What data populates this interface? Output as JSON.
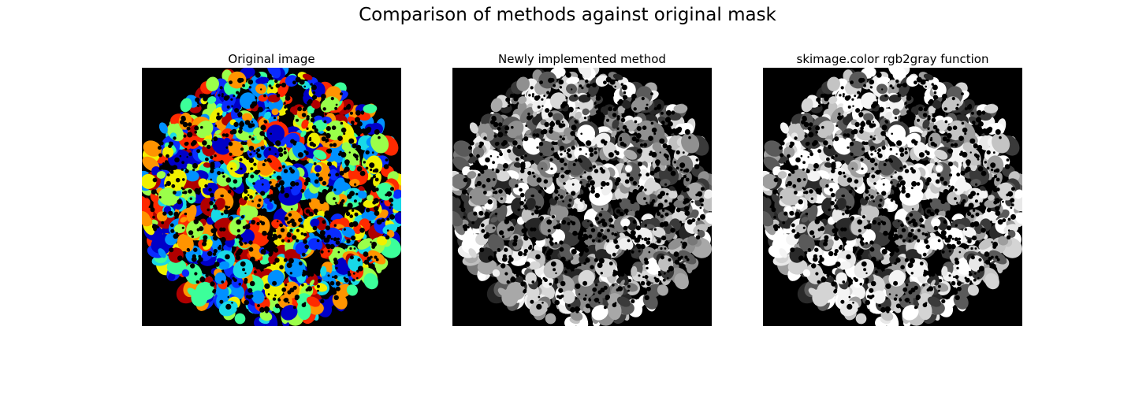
{
  "figure": {
    "suptitle": "Comparison of methods against original mask",
    "panels": [
      {
        "title": "Original image",
        "palette": "jet"
      },
      {
        "title": "Newly implemented method",
        "palette": "gray"
      },
      {
        "title": "skimage.color rgb2gray function",
        "palette": "gray-bright"
      }
    ]
  },
  "colors": {
    "background": "#000000",
    "jet": [
      "#0000c8",
      "#0a2cff",
      "#0090ff",
      "#18d8e8",
      "#3cff9a",
      "#9aff4a",
      "#f0f000",
      "#ff9400",
      "#ff2a00",
      "#b00000"
    ],
    "gray": [
      "#ffffff",
      "#f0f0f0",
      "#d8d8d8",
      "#c0c0c0",
      "#a8a8a8",
      "#909090",
      "#787878",
      "#5a5a5a",
      "#3a3a3a",
      "#262626"
    ],
    "gray-bright": [
      "#ffffff",
      "#ffffff",
      "#f4f4f4",
      "#e8e8e8",
      "#d4d4d4",
      "#c4c4c4",
      "#9e9e9e",
      "#5a5a5a",
      "#3a3a3a",
      "#2a2a2a"
    ]
  }
}
